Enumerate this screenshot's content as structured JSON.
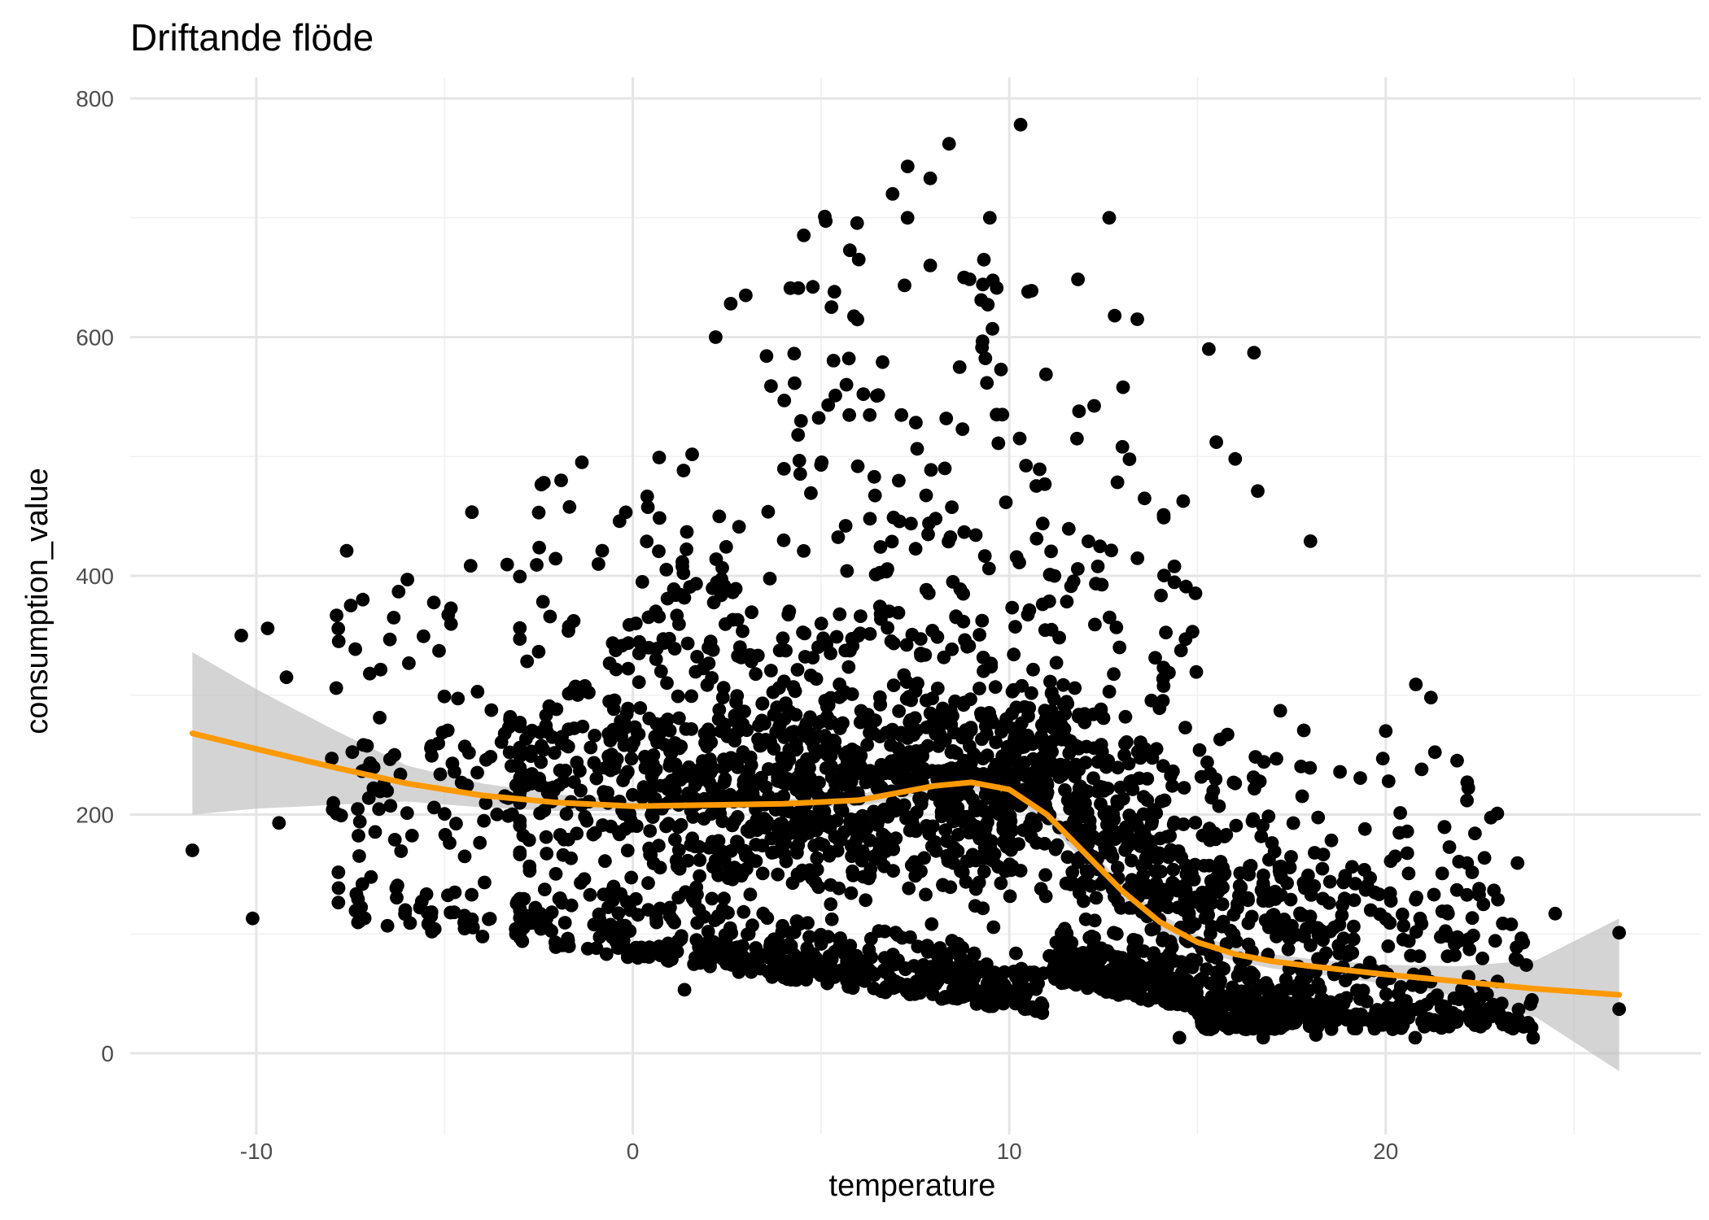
{
  "chart_data": {
    "type": "scatter",
    "title": "Driftande flöde",
    "xlabel": "temperature",
    "ylabel": "consumption_value",
    "xlim": [
      -13.7,
      28.3
    ],
    "ylim": [
      -52,
      810
    ],
    "x_ticks": [
      -10,
      0,
      10,
      20
    ],
    "y_ticks": [
      0,
      200,
      400,
      600,
      800
    ],
    "x_tick_labels": [
      "-10",
      "0",
      "10",
      "20"
    ],
    "y_tick_labels": [
      "0",
      "200",
      "400",
      "600",
      "800"
    ],
    "grid": true,
    "theme": "minimal",
    "point_color": "#000000",
    "smooth_color": "#ff9900",
    "band_color": "#bdbdbd",
    "smooth": {
      "method": "loess",
      "x": [
        -11.7,
        -10,
        -8,
        -6,
        -4,
        -2,
        0,
        2,
        4,
        6,
        8,
        9,
        10,
        11,
        12,
        13,
        14,
        15,
        16,
        17,
        18,
        20,
        22,
        24,
        26.2
      ],
      "y": [
        268,
        255,
        240,
        226,
        216,
        210,
        207,
        208,
        209,
        212,
        224,
        227,
        221,
        200,
        168,
        136,
        110,
        93,
        83,
        77,
        73,
        66,
        60,
        54,
        49
      ],
      "ci_lower": [
        200,
        205,
        208,
        211,
        206,
        203,
        203,
        205,
        206,
        207,
        218,
        220,
        214,
        193,
        160,
        129,
        103,
        86,
        77,
        71,
        67,
        58,
        47,
        30,
        -15
      ],
      "ci_upper": [
        336,
        305,
        272,
        241,
        226,
        217,
        212,
        212,
        213,
        217,
        230,
        233,
        228,
        207,
        175,
        143,
        117,
        99,
        89,
        83,
        79,
        74,
        73,
        78,
        113
      ]
    },
    "outliers": [
      {
        "x": 10.3,
        "y": 778
      },
      {
        "x": 8.4,
        "y": 762
      },
      {
        "x": 7.3,
        "y": 743
      },
      {
        "x": 7.9,
        "y": 733
      },
      {
        "x": 6.9,
        "y": 720
      },
      {
        "x": 5.1,
        "y": 701
      },
      {
        "x": 6.0,
        "y": 665
      },
      {
        "x": 7.9,
        "y": 660
      },
      {
        "x": 8.8,
        "y": 650
      },
      {
        "x": 2.2,
        "y": 600
      },
      {
        "x": 2.6,
        "y": 628
      },
      {
        "x": 3.0,
        "y": 635
      },
      {
        "x": 4.4,
        "y": 641
      },
      {
        "x": 10.5,
        "y": 638
      },
      {
        "x": 13.4,
        "y": 615
      },
      {
        "x": 12.8,
        "y": 618
      },
      {
        "x": 16.5,
        "y": 587
      },
      {
        "x": 15.3,
        "y": 590
      },
      {
        "x": 18.0,
        "y": 429
      },
      {
        "x": -2.5,
        "y": 453
      },
      {
        "x": -7.6,
        "y": 421
      },
      {
        "x": -10.4,
        "y": 350
      },
      {
        "x": -9.7,
        "y": 356
      },
      {
        "x": -9.2,
        "y": 315
      },
      {
        "x": -11.7,
        "y": 170
      },
      {
        "x": -10.1,
        "y": 113
      },
      {
        "x": -9.4,
        "y": 193
      },
      {
        "x": 20.8,
        "y": 309
      },
      {
        "x": 21.2,
        "y": 298
      },
      {
        "x": 20.0,
        "y": 270
      },
      {
        "x": 24.5,
        "y": 117
      },
      {
        "x": 26.2,
        "y": 101
      },
      {
        "x": 26.2,
        "y": 37
      },
      {
        "x": 16.6,
        "y": 471
      },
      {
        "x": 16.0,
        "y": 498
      },
      {
        "x": 15.5,
        "y": 512
      }
    ],
    "generated_points": 3200,
    "seed": 20240517
  }
}
